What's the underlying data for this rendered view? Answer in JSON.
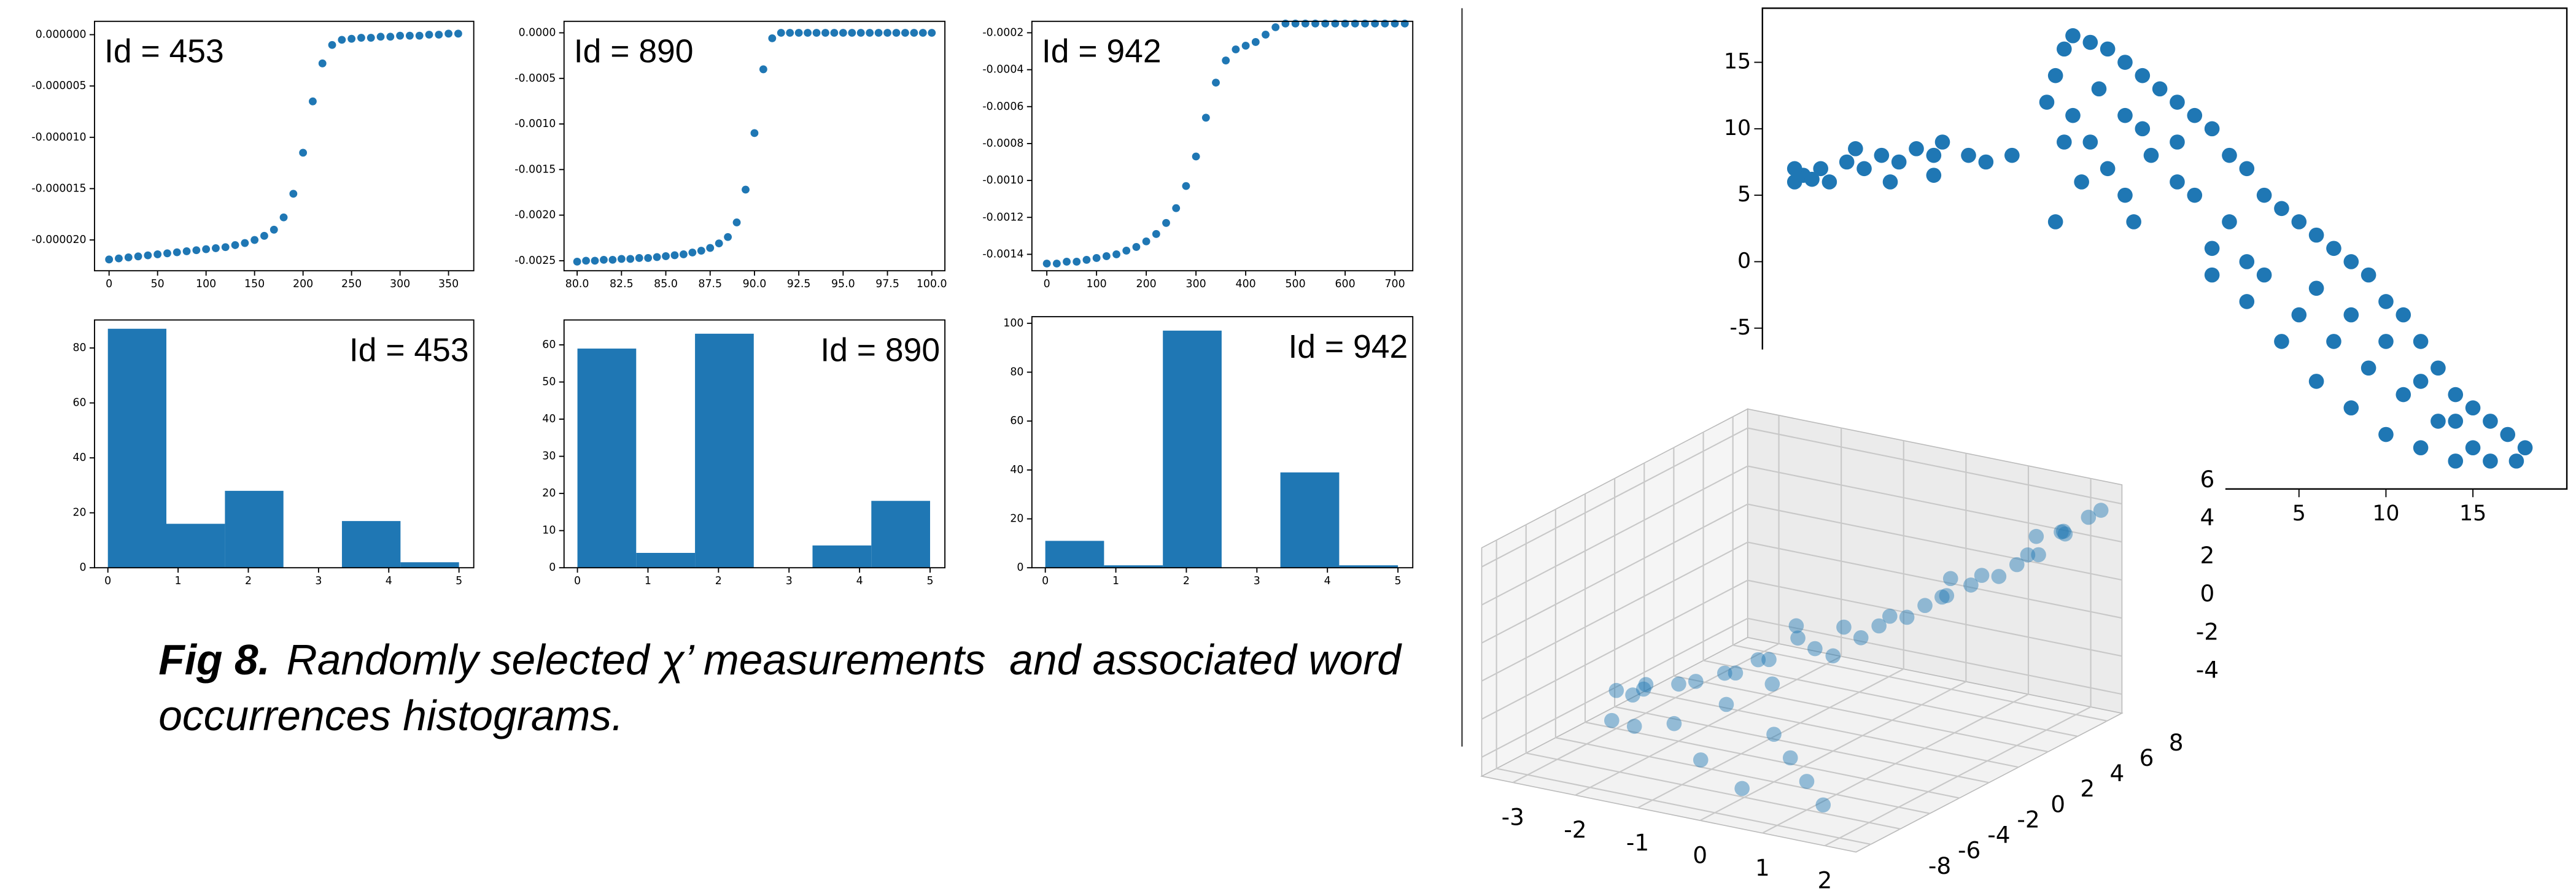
{
  "chart_data": [
    {
      "type": "scatter",
      "annotation": "Id = 453",
      "color": "#1f77b4",
      "x": [
        0,
        10,
        20,
        30,
        40,
        50,
        60,
        70,
        80,
        90,
        100,
        110,
        120,
        130,
        140,
        150,
        160,
        170,
        180,
        190,
        200,
        210,
        220,
        230,
        240,
        250,
        260,
        270,
        280,
        290,
        300,
        310,
        320,
        330,
        340,
        350,
        360
      ],
      "values": [
        -2.19e-05,
        -2.18e-05,
        -2.17e-05,
        -2.16e-05,
        -2.15e-05,
        -2.14e-05,
        -2.13e-05,
        -2.12e-05,
        -2.11e-05,
        -2.1e-05,
        -2.09e-05,
        -2.08e-05,
        -2.07e-05,
        -2.05e-05,
        -2.03e-05,
        -2e-05,
        -1.96e-05,
        -1.9e-05,
        -1.78e-05,
        -1.55e-05,
        -1.15e-05,
        -6.5e-06,
        -2.8e-06,
        -1e-06,
        -5e-07,
        -4e-07,
        -3e-07,
        -3e-07,
        -2e-07,
        -2e-07,
        -1e-07,
        -1e-07,
        -1e-07,
        0,
        0,
        1e-07,
        1e-07
      ],
      "xlim": [
        -15,
        376
      ],
      "ylim": [
        -2.3e-05,
        1.3e-06
      ],
      "xticks": [
        0,
        50,
        100,
        150,
        200,
        250,
        300,
        350
      ],
      "yticks": [
        {
          "value": 0,
          "label": "0.000000"
        },
        -5e-06,
        {
          "value": -1e-05,
          "label": "-0.000010"
        },
        -1.5e-05,
        {
          "value": -2e-05,
          "label": "-0.000020"
        }
      ]
    },
    {
      "type": "scatter",
      "annotation": "Id = 890",
      "color": "#1f77b4",
      "x": [
        80,
        80.5,
        81,
        81.5,
        82,
        82.5,
        83,
        83.5,
        84,
        84.5,
        85,
        85.5,
        86,
        86.5,
        87,
        87.5,
        88,
        88.5,
        89,
        89.5,
        90,
        90.5,
        91,
        91.5,
        92,
        92.5,
        93,
        93.5,
        94,
        94.5,
        95,
        95.5,
        96,
        96.5,
        97,
        97.5,
        98,
        98.5,
        99,
        99.5,
        100
      ],
      "values": [
        -0.00251,
        -0.0025,
        -0.0025,
        -0.00249,
        -0.00249,
        -0.00248,
        -0.00248,
        -0.00247,
        -0.00247,
        -0.00246,
        -0.00245,
        -0.00244,
        -0.00243,
        -0.00241,
        -0.00239,
        -0.00236,
        -0.00231,
        -0.00224,
        -0.00208,
        -0.00172,
        -0.0011,
        -0.0004,
        -6e-05,
        0,
        0,
        0,
        0,
        0,
        0,
        0,
        0,
        0,
        0,
        0,
        0,
        0,
        0,
        0,
        0,
        0,
        0
      ],
      "xlim": [
        79.26,
        100.74
      ],
      "ylim": [
        -0.00261,
        0.000126
      ],
      "xticks": [
        {
          "value": 80,
          "label": "80.0"
        },
        82.5,
        {
          "value": 85,
          "label": "85.0"
        },
        87.5,
        {
          "value": 90,
          "label": "90.0"
        },
        92.5,
        {
          "value": 95,
          "label": "95.0"
        },
        97.5,
        {
          "value": 100,
          "label": "100.0"
        }
      ],
      "yticks": [
        {
          "value": 0,
          "label": "0.0000"
        },
        -0.0005,
        {
          "value": -0.001,
          "label": "-0.0010"
        },
        -0.0015,
        {
          "value": -0.002,
          "label": "-0.0020"
        },
        -0.0025
      ]
    },
    {
      "type": "scatter",
      "annotation": "Id = 942",
      "color": "#1f77b4",
      "x": [
        0,
        20,
        40,
        60,
        80,
        100,
        120,
        140,
        160,
        180,
        200,
        220,
        240,
        260,
        280,
        300,
        320,
        340,
        360,
        380,
        400,
        420,
        440,
        460,
        480,
        500,
        520,
        540,
        560,
        580,
        600,
        620,
        640,
        660,
        680,
        700,
        720
      ],
      "values": [
        -0.00145,
        -0.00145,
        -0.00144,
        -0.00144,
        -0.00143,
        -0.00142,
        -0.00141,
        -0.0014,
        -0.00138,
        -0.00136,
        -0.00133,
        -0.00129,
        -0.00123,
        -0.00115,
        -0.00103,
        -0.00087,
        -0.00066,
        -0.00047,
        -0.00035,
        -0.00029,
        -0.00027,
        -0.00025,
        -0.00021,
        -0.00017,
        -0.00015,
        -0.00015,
        -0.00015,
        -0.00015,
        -0.00015,
        -0.00015,
        -0.00015,
        -0.00015,
        -0.00015,
        -0.00015,
        -0.00015,
        -0.00015,
        -0.00015
      ],
      "xlim": [
        -30,
        736
      ],
      "ylim": [
        -0.001489,
        -0.000138
      ],
      "xticks": [
        0,
        100,
        200,
        300,
        400,
        500,
        600,
        700
      ],
      "yticks": [
        -0.0002,
        -0.0004,
        -0.0006,
        -0.0008,
        {
          "value": -0.001,
          "label": "-0.0010"
        },
        -0.0012,
        -0.0014
      ]
    },
    {
      "type": "histogram",
      "annotation": "Id = 453",
      "color": "#1f77b4",
      "bins": [
        0,
        0.833,
        1.667,
        2.5,
        3.333,
        4.167,
        5
      ],
      "values": [
        87,
        16,
        28,
        0,
        17,
        2
      ],
      "xlim": [
        -0.19,
        5.21
      ],
      "ylim": [
        0,
        90.2
      ],
      "xticks": [
        0,
        1,
        2,
        3,
        4,
        5
      ],
      "yticks": [
        0,
        20,
        40,
        60,
        80
      ]
    },
    {
      "type": "histogram",
      "annotation": "Id = 890",
      "color": "#1f77b4",
      "bins": [
        0,
        0.833,
        1.667,
        2.5,
        3.333,
        4.167,
        5
      ],
      "values": [
        59,
        4,
        63,
        0,
        6,
        18
      ],
      "xlim": [
        -0.19,
        5.21
      ],
      "ylim": [
        0,
        66.7
      ],
      "xticks": [
        0,
        1,
        2,
        3,
        4,
        5
      ],
      "yticks": [
        0,
        10,
        20,
        30,
        40,
        50,
        60
      ]
    },
    {
      "type": "histogram",
      "annotation": "Id = 942",
      "color": "#1f77b4",
      "bins": [
        0,
        0.833,
        1.667,
        2.5,
        3.333,
        4.167,
        5
      ],
      "values": [
        11,
        1,
        97,
        0,
        39,
        1
      ],
      "xlim": [
        -0.19,
        5.21
      ],
      "ylim": [
        0,
        102.7
      ],
      "xticks": [
        0,
        1,
        2,
        3,
        4,
        5
      ],
      "yticks": [
        0,
        20,
        40,
        60,
        80,
        100
      ]
    },
    {
      "type": "scatter",
      "color": "#1f77b4",
      "x": [
        -24,
        -23.5,
        -24,
        -23,
        -22.5,
        -22,
        -21,
        -20,
        -19,
        -18,
        -17,
        -16,
        -15.5,
        -14,
        -13,
        -18.5,
        -16,
        -20.5,
        -11.5,
        -8.5,
        -8,
        -7,
        -6,
        -5,
        -4,
        -3,
        -2,
        -1,
        0,
        -9,
        -9.5,
        -8,
        -7,
        -6,
        -5,
        -4.5,
        -8.5,
        -9,
        -7.5,
        -6.5,
        -5,
        -3.5,
        -2,
        0,
        1,
        2,
        3,
        4,
        5,
        6,
        7,
        8,
        9,
        10,
        11,
        12,
        13,
        14,
        15,
        16,
        17,
        18,
        17.5,
        16,
        14,
        12,
        10,
        8,
        6,
        4,
        2,
        0,
        3,
        5,
        7,
        9,
        11,
        13,
        1,
        -1,
        6,
        8,
        10,
        12,
        14,
        15,
        -2,
        -4,
        2
      ],
      "values": [
        6,
        6.5,
        7,
        6.2,
        7,
        6,
        7.5,
        7,
        8,
        7.5,
        8.5,
        8,
        9,
        8,
        7.5,
        6,
        6.5,
        8.5,
        8,
        16,
        17,
        16.5,
        16,
        15,
        14,
        13,
        12,
        11,
        10,
        14,
        12,
        11,
        9,
        7,
        5,
        3,
        9,
        3,
        6,
        13,
        11,
        8,
        6,
        1,
        8,
        7,
        5,
        4,
        3,
        2,
        1,
        0,
        -1,
        -3,
        -4,
        -6,
        -8,
        -10,
        -11,
        -12,
        -13,
        -14,
        -15,
        -15,
        -15,
        -14,
        -13,
        -11,
        -9,
        -6,
        -3,
        -1,
        -1,
        -4,
        -6,
        -8,
        -10,
        -12,
        3,
        5,
        -2,
        -4,
        -6,
        -9,
        -12,
        -14,
        9,
        10,
        0
      ],
      "xlim": [
        -25.85,
        20.4
      ],
      "ylim": [
        -17.1,
        19.07
      ],
      "xticks": [
        5,
        10,
        15
      ],
      "yticks": [
        -5,
        0,
        5,
        10,
        15
      ]
    },
    {
      "type": "scatter3d",
      "color": "#1f77b4",
      "x": [
        -3,
        -2.8,
        -2.5,
        -2.2,
        -2,
        -1.8,
        -1.5,
        -1.5,
        -1.2,
        -1,
        -1,
        -0.8,
        -0.5,
        -0.5,
        -0.3,
        0,
        0,
        0,
        0.2,
        0.4,
        0.5,
        0.5,
        0.8,
        1,
        1,
        1,
        1.2,
        1.4,
        1.5,
        1.5,
        1.7,
        1.8,
        2,
        2,
        2.2,
        2.3,
        2.4,
        -2.6,
        -2,
        -1.6,
        -0.7,
        0.2,
        -3,
        -1.3,
        0.7,
        1.6
      ],
      "y": [
        -2,
        -1,
        -3,
        0,
        -2,
        1,
        -1,
        2,
        0,
        3,
        -3,
        1,
        4,
        -2,
        2,
        5,
        0,
        -4,
        3,
        6,
        1,
        -5,
        4,
        7,
        2,
        -6,
        5,
        8,
        3,
        -7,
        6,
        8,
        4,
        7,
        8,
        6,
        8,
        -4,
        -5,
        -4,
        -6,
        -7,
        0,
        3,
        5,
        7
      ],
      "z": [
        -3,
        -3.2,
        -2.5,
        -2.8,
        -2,
        -2.5,
        -1.5,
        -2,
        -1,
        -1.5,
        -2,
        0,
        -1,
        -1,
        0.5,
        0,
        0,
        -2.5,
        1,
        1,
        1.5,
        -3,
        2,
        2,
        2.5,
        -3.5,
        3,
        3,
        3.5,
        -4,
        4,
        4.5,
        4.5,
        5,
        5.5,
        5.5,
        6,
        -3.5,
        -3,
        -3,
        -3.5,
        -4,
        -3.5,
        -0.5,
        2.5,
        4.5
      ],
      "xlim": [
        -3.5,
        2.5
      ],
      "ylim": [
        -9,
        9
      ],
      "zlim": [
        -5,
        7
      ],
      "xticks": [
        -3,
        -2,
        -1,
        0,
        1,
        2
      ],
      "yticks": [
        -8,
        -6,
        -4,
        -2,
        0,
        2,
        4,
        6,
        8
      ],
      "zticks": [
        -4,
        -2,
        0,
        2,
        4,
        6
      ]
    }
  ],
  "caption": {
    "label": "Fig 8.",
    "line1": "Randomly selected χ’ measurements  and associated word",
    "line2": "occurrences histograms."
  }
}
